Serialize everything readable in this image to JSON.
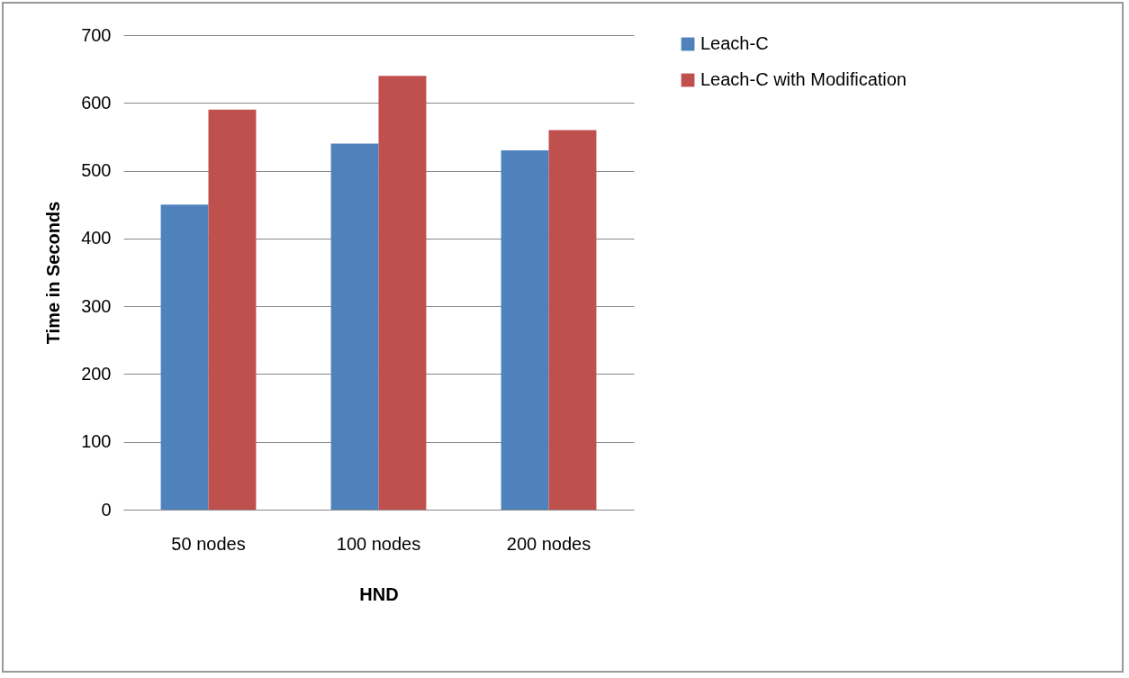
{
  "chart_data": {
    "type": "bar",
    "xlabel": "HND",
    "ylabel": "Time in Seconds",
    "categories": [
      "50 nodes",
      "100 nodes",
      "200 nodes"
    ],
    "series": [
      {
        "name": "Leach-C",
        "color": "#4f81bd",
        "values": [
          450,
          540,
          530
        ]
      },
      {
        "name": "Leach-C with  Modification",
        "color": "#c0504d",
        "values": [
          590,
          640,
          560
        ]
      }
    ],
    "ylim": [
      0,
      700
    ],
    "yticks": [
      0,
      100,
      200,
      300,
      400,
      500,
      600,
      700
    ],
    "grid": "y",
    "legend": "right"
  }
}
